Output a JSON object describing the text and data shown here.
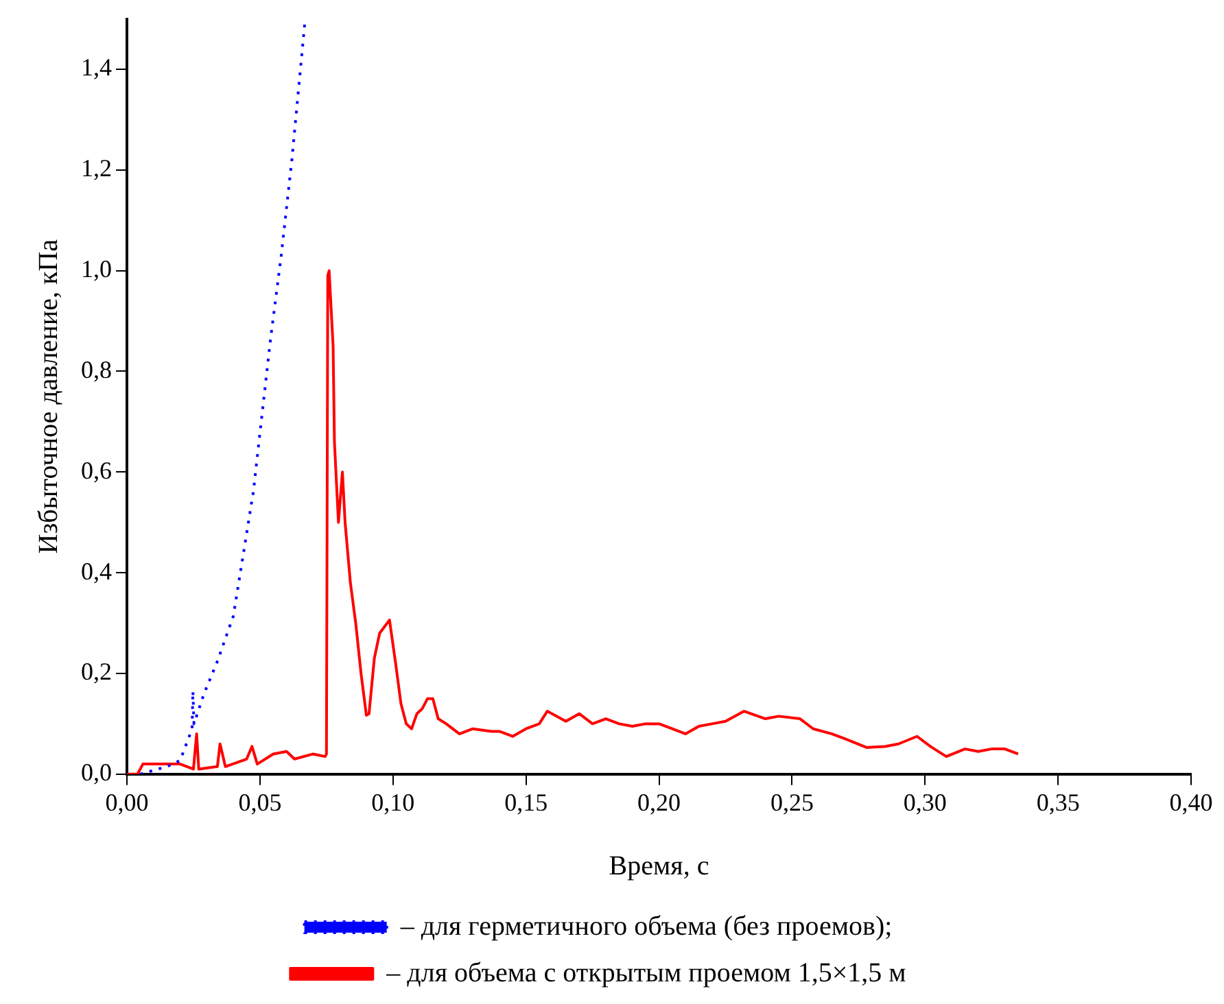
{
  "chart_data": {
    "type": "line",
    "xlabel": "Время, с",
    "ylabel": "Избыточное давление, кПа",
    "xlim": [
      0,
      0.4
    ],
    "ylim": [
      0,
      1.5
    ],
    "xticks": [
      {
        "value": 0,
        "label": "0,00"
      },
      {
        "value": 0.05,
        "label": "0,05"
      },
      {
        "value": 0.1,
        "label": "0,10"
      },
      {
        "value": 0.15,
        "label": "0,15"
      },
      {
        "value": 0.2,
        "label": "0,20"
      },
      {
        "value": 0.25,
        "label": "0,25"
      },
      {
        "value": 0.3,
        "label": "0,30"
      },
      {
        "value": 0.35,
        "label": "0,35"
      },
      {
        "value": 0.4,
        "label": "0,40"
      }
    ],
    "yticks": [
      {
        "value": 0,
        "label": "0,0"
      },
      {
        "value": 0.2,
        "label": "0,2"
      },
      {
        "value": 0.4,
        "label": "0,4"
      },
      {
        "value": 0.6,
        "label": "0,6"
      },
      {
        "value": 0.8,
        "label": "0,8"
      },
      {
        "value": 1.0,
        "label": "1,0"
      },
      {
        "value": 1.2,
        "label": "1,2"
      },
      {
        "value": 1.4,
        "label": "1,4"
      }
    ],
    "grid": false,
    "legend": "bottom",
    "marker": "none",
    "series": [
      {
        "name": "– для герметичного объема (без проемов);",
        "color": "#0000ff",
        "line_style": "dotted",
        "x": [
          0.005,
          0.015,
          0.02,
          0.0245,
          0.0248,
          0.0252,
          0.029,
          0.034,
          0.04,
          0.0475,
          0.054,
          0.058,
          0.062,
          0.067
        ],
        "values": [
          0,
          0.015,
          0.027,
          0.09,
          0.165,
          0.1,
          0.16,
          0.224,
          0.314,
          0.56,
          0.865,
          1.03,
          1.22,
          1.5
        ]
      },
      {
        "name": "– для объема с открытым проемом 1,5×1,5 м",
        "color": "#ff0000",
        "line_style": "solid",
        "x": [
          0,
          0.004,
          0.006,
          0.02,
          0.025,
          0.0262,
          0.027,
          0.034,
          0.035,
          0.037,
          0.045,
          0.047,
          0.049,
          0.055,
          0.06,
          0.063,
          0.07,
          0.0745,
          0.075,
          0.0755,
          0.076,
          0.0775,
          0.078,
          0.0795,
          0.081,
          0.082,
          0.084,
          0.086,
          0.088,
          0.09,
          0.091,
          0.093,
          0.095,
          0.0987,
          0.101,
          0.103,
          0.105,
          0.107,
          0.109,
          0.111,
          0.113,
          0.115,
          0.117,
          0.12,
          0.125,
          0.13,
          0.137,
          0.14,
          0.145,
          0.15,
          0.155,
          0.158,
          0.165,
          0.17,
          0.175,
          0.18,
          0.185,
          0.19,
          0.195,
          0.2,
          0.205,
          0.21,
          0.215,
          0.22,
          0.225,
          0.232,
          0.24,
          0.245,
          0.253,
          0.258,
          0.265,
          0.27,
          0.278,
          0.285,
          0.29,
          0.297,
          0.302,
          0.308,
          0.315,
          0.32,
          0.325,
          0.33,
          0.335
        ],
        "values": [
          0,
          0,
          0.02,
          0.02,
          0.01,
          0.08,
          0.01,
          0.015,
          0.06,
          0.015,
          0.03,
          0.055,
          0.02,
          0.04,
          0.045,
          0.03,
          0.04,
          0.035,
          0.04,
          0.99,
          1.0,
          0.85,
          0.66,
          0.5,
          0.6,
          0.5,
          0.38,
          0.3,
          0.2,
          0.117,
          0.12,
          0.23,
          0.28,
          0.306,
          0.22,
          0.14,
          0.1,
          0.09,
          0.12,
          0.13,
          0.15,
          0.15,
          0.11,
          0.1,
          0.08,
          0.09,
          0.085,
          0.085,
          0.075,
          0.09,
          0.1,
          0.125,
          0.105,
          0.12,
          0.1,
          0.11,
          0.1,
          0.095,
          0.1,
          0.1,
          0.09,
          0.08,
          0.095,
          0.1,
          0.105,
          0.125,
          0.11,
          0.115,
          0.11,
          0.09,
          0.08,
          0.07,
          0.053,
          0.055,
          0.06,
          0.075,
          0.055,
          0.035,
          0.05,
          0.045,
          0.05,
          0.05,
          0.04
        ]
      }
    ]
  }
}
